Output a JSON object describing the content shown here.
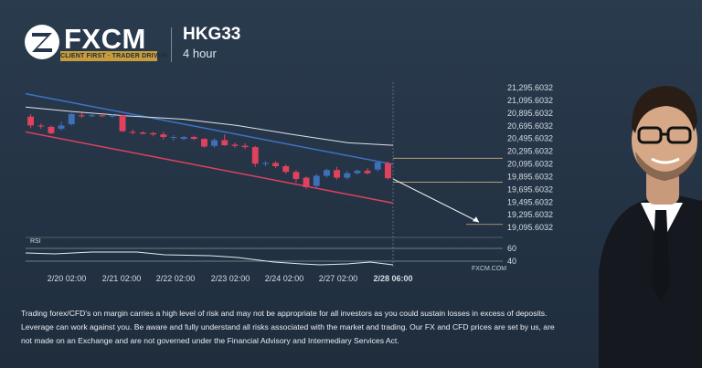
{
  "brand": {
    "name": "FXCM",
    "tagline": "CLIENT FIRST · TRADER DRIVEN"
  },
  "header": {
    "symbol": "HKG33",
    "timeframe": "4 hour"
  },
  "chart_data": {
    "type": "candlestick",
    "title": "HKG33",
    "ylim": [
      19055,
      21310
    ],
    "y_ticks": [
      "21,295.6032",
      "21,095.6032",
      "20,895.6032",
      "20,695.6032",
      "20,495.6032",
      "20,295.6032",
      "20,095.6032",
      "19,895.6032",
      "19,695.6032",
      "19,495.6032",
      "19,295.6032",
      "19,095.6032"
    ],
    "x_ticks": [
      "2/20 02:00",
      "2/21 02:00",
      "2/22 02:00",
      "2/23 02:00",
      "2/24 02:00",
      "2/27 02:00",
      "2/28 06:00"
    ],
    "candles": [
      {
        "o": 20840,
        "c": 20700,
        "h": 20880,
        "l": 20660
      },
      {
        "o": 20700,
        "c": 20690,
        "h": 20730,
        "l": 20650
      },
      {
        "o": 20680,
        "c": 20580,
        "h": 20700,
        "l": 20560
      },
      {
        "o": 20650,
        "c": 20700,
        "h": 20760,
        "l": 20620
      },
      {
        "o": 20720,
        "c": 20880,
        "h": 20900,
        "l": 20700
      },
      {
        "o": 20860,
        "c": 20850,
        "h": 20900,
        "l": 20820
      },
      {
        "o": 20850,
        "c": 20860,
        "h": 20880,
        "l": 20830
      },
      {
        "o": 20860,
        "c": 20850,
        "h": 20880,
        "l": 20830
      },
      {
        "o": 20840,
        "c": 20860,
        "h": 20880,
        "l": 20820
      },
      {
        "o": 20860,
        "c": 20610,
        "h": 20870,
        "l": 20600
      },
      {
        "o": 20600,
        "c": 20590,
        "h": 20640,
        "l": 20560
      },
      {
        "o": 20590,
        "c": 20570,
        "h": 20610,
        "l": 20560
      },
      {
        "o": 20580,
        "c": 20560,
        "h": 20600,
        "l": 20530
      },
      {
        "o": 20560,
        "c": 20520,
        "h": 20600,
        "l": 20480
      },
      {
        "o": 20520,
        "c": 20520,
        "h": 20550,
        "l": 20460
      },
      {
        "o": 20490,
        "c": 20520,
        "h": 20540,
        "l": 20470
      },
      {
        "o": 20520,
        "c": 20490,
        "h": 20540,
        "l": 20470
      },
      {
        "o": 20490,
        "c": 20370,
        "h": 20500,
        "l": 20350
      },
      {
        "o": 20380,
        "c": 20470,
        "h": 20500,
        "l": 20350
      },
      {
        "o": 20470,
        "c": 20390,
        "h": 20560,
        "l": 20380
      },
      {
        "o": 20400,
        "c": 20380,
        "h": 20430,
        "l": 20350
      },
      {
        "o": 20380,
        "c": 20360,
        "h": 20420,
        "l": 20330
      },
      {
        "o": 20360,
        "c": 20100,
        "h": 20380,
        "l": 20050
      },
      {
        "o": 20100,
        "c": 20110,
        "h": 20140,
        "l": 20060
      },
      {
        "o": 20110,
        "c": 20060,
        "h": 20140,
        "l": 20030
      },
      {
        "o": 20060,
        "c": 19970,
        "h": 20090,
        "l": 19940
      },
      {
        "o": 19970,
        "c": 19860,
        "h": 20000,
        "l": 19800
      },
      {
        "o": 19880,
        "c": 19730,
        "h": 19900,
        "l": 19700
      },
      {
        "o": 19750,
        "c": 19910,
        "h": 19940,
        "l": 19720
      },
      {
        "o": 19910,
        "c": 20000,
        "h": 20020,
        "l": 19880
      },
      {
        "o": 20000,
        "c": 19880,
        "h": 20050,
        "l": 19850
      },
      {
        "o": 19880,
        "c": 19950,
        "h": 19990,
        "l": 19850
      },
      {
        "o": 19950,
        "c": 19990,
        "h": 20010,
        "l": 19930
      },
      {
        "o": 19990,
        "c": 19950,
        "h": 20030,
        "l": 19930
      },
      {
        "o": 20010,
        "c": 20120,
        "h": 20140,
        "l": 19980
      },
      {
        "o": 20110,
        "c": 19870,
        "h": 20130,
        "l": 19850
      }
    ],
    "rsi": {
      "label": "RSI",
      "levels": [
        "60",
        "40"
      ]
    },
    "watermark": "FXCM.COM"
  },
  "colors": {
    "bull": "#3f6fb8",
    "bear": "#e0425e",
    "trend_blue": "#3d73c9",
    "trend_red": "#e0425e",
    "ma": "#dde2e8",
    "projection": "#ffffff",
    "level": "#c9b07c"
  },
  "disclaimer": "Trading forex/CFD's on margin carries a high level of risk and may not be appropriate for all investors as you could sustain losses in excess of deposits. Leverage can work against you. Be aware and fully understand all risks associated with the market and trading. Our FX and CFD prices are set by us, are not made on an Exchange and are not governed under the Financial Advisory and Intermediary Services Act."
}
